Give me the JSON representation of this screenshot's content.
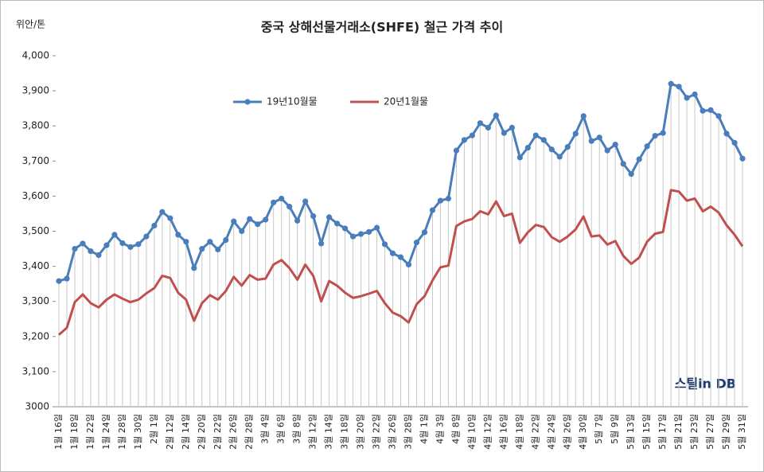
{
  "chart_data": {
    "type": "line",
    "title": "중국 상해선물거래소(SHFE)  철근 가격 추이",
    "y_label": "위안/톤",
    "watermark": "스틸in DB",
    "categories": [
      "1월 16일",
      null,
      "1월 18일",
      null,
      "1월 22일",
      null,
      "1월 24일",
      null,
      "1월 28일",
      null,
      "1월 30일",
      null,
      "2월 1일",
      null,
      "2월 12일",
      null,
      "2월 14일",
      null,
      "2월 20일",
      null,
      "2월 22일",
      null,
      "2월 26일",
      null,
      "2월 28일",
      null,
      "3월 4일",
      null,
      "3월 6일",
      null,
      "3월 8일",
      null,
      "3월 12일",
      null,
      "3월 14일",
      null,
      "3월 18일",
      null,
      "3월 20일",
      null,
      "3월 22일",
      null,
      "3월 26일",
      null,
      "3월 28일",
      null,
      "4월 1일",
      null,
      "4월 3일",
      null,
      "4월 8일",
      null,
      "4월 10일",
      null,
      "4월 12일",
      null,
      "4월 16일",
      null,
      "4월 18일",
      null,
      "4월 22일",
      null,
      "4월 24일",
      null,
      "4월 26일",
      null,
      "4월 30일",
      null,
      "5월 7일",
      null,
      "5월 9일",
      null,
      "5월 13일",
      null,
      "5월 15일",
      null,
      "5월 17일",
      null,
      "5월 21일",
      null,
      "5월 23일",
      null,
      "5월 27일",
      null,
      "5월 29일",
      null,
      "5월 31일"
    ],
    "series": [
      {
        "name": "19년10월물",
        "color": "#4a7ebb",
        "values": [
          3358,
          3365,
          3450,
          3465,
          3443,
          3432,
          3460,
          3490,
          3466,
          3455,
          3463,
          3485,
          3516,
          3555,
          3537,
          3490,
          3470,
          3395,
          3450,
          3470,
          3448,
          3475,
          3528,
          3500,
          3535,
          3520,
          3533,
          3582,
          3593,
          3570,
          3530,
          3585,
          3543,
          3465,
          3540,
          3522,
          3508,
          3485,
          3492,
          3498,
          3510,
          3463,
          3437,
          3426,
          3405,
          3468,
          3497,
          3560,
          3587,
          3593,
          3730,
          3760,
          3773,
          3808,
          3795,
          3830,
          3780,
          3795,
          3710,
          3738,
          3773,
          3760,
          3733,
          3712,
          3740,
          3778,
          3828,
          3757,
          3767,
          3730,
          3747,
          3692,
          3663,
          3705,
          3742,
          3772,
          3780,
          3920,
          3912,
          3880,
          3890,
          3843,
          3845,
          3828,
          3778,
          3752,
          3707
        ]
      },
      {
        "name": "20년1월물",
        "color": "#c0504d",
        "values": [
          3205,
          3225,
          3298,
          3320,
          3295,
          3283,
          3305,
          3320,
          3308,
          3298,
          3305,
          3323,
          3338,
          3373,
          3367,
          3325,
          3305,
          3245,
          3295,
          3318,
          3305,
          3330,
          3370,
          3345,
          3375,
          3362,
          3365,
          3405,
          3418,
          3395,
          3362,
          3405,
          3373,
          3300,
          3358,
          3345,
          3325,
          3310,
          3315,
          3322,
          3330,
          3295,
          3268,
          3258,
          3240,
          3292,
          3315,
          3360,
          3397,
          3402,
          3515,
          3528,
          3535,
          3557,
          3548,
          3585,
          3543,
          3550,
          3467,
          3497,
          3518,
          3512,
          3483,
          3470,
          3485,
          3505,
          3542,
          3485,
          3488,
          3462,
          3472,
          3430,
          3407,
          3425,
          3470,
          3493,
          3498,
          3617,
          3613,
          3587,
          3593,
          3557,
          3570,
          3553,
          3517,
          3490,
          3457
        ]
      }
    ],
    "ylim": [
      3000,
      4000
    ],
    "yticks": [
      3000,
      {
        "value": 3100,
        "label": "3,100"
      },
      {
        "value": 3200,
        "label": "3,200"
      },
      {
        "value": 3300,
        "label": "3,300"
      },
      {
        "value": 3400,
        "label": "3,400"
      },
      {
        "value": 3500,
        "label": "3,500"
      },
      {
        "value": 3600,
        "label": "3,600"
      },
      {
        "value": 3700,
        "label": "3,700"
      },
      {
        "value": 3800,
        "label": "3,800"
      },
      {
        "value": 3900,
        "label": "3,900"
      },
      {
        "value": 4000,
        "label": "4,000"
      }
    ],
    "drop_lines": true,
    "markers": true,
    "legend": "top"
  }
}
